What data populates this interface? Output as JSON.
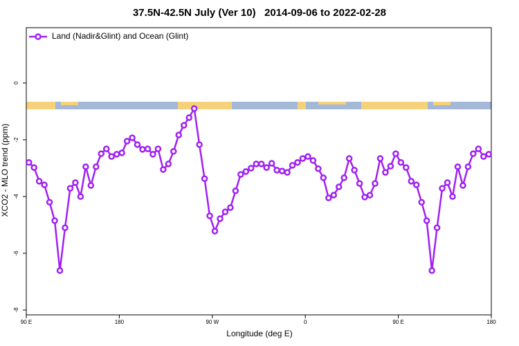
{
  "chart_data": {
    "type": "line",
    "title": "37.5N-42.5N July (Ver 10)   2014-09-06 to 2022-02-28",
    "x_label": "Longitude (deg E)",
    "y_label": "XCO2 - MLO trend (ppm)",
    "x": [
      92.5,
      97.5,
      102.5,
      107.5,
      112.5,
      117.5,
      122.5,
      127.5,
      132.5,
      137.5,
      142.5,
      147.5,
      152.5,
      157.5,
      162.5,
      167.5,
      172.5,
      177.5,
      182.5,
      187.5,
      192.5,
      197.5,
      202.5,
      207.5,
      212.5,
      217.5,
      222.5,
      227.5,
      232.5,
      237.5,
      242.5,
      247.5,
      252.5,
      257.5,
      262.5,
      267.5,
      272.5,
      277.5,
      282.5,
      287.5,
      292.5,
      297.5,
      302.5,
      307.5,
      312.5,
      317.5,
      322.5,
      327.5,
      332.5,
      337.5,
      342.5,
      347.5,
      352.5,
      357.5,
      362.5,
      367.5,
      372.5,
      377.5,
      382.5,
      387.5,
      392.5,
      397.5,
      402.5,
      407.5,
      412.5,
      417.5,
      422.5,
      427.5,
      432.5,
      437.5,
      442.5,
      447.5,
      452.5,
      457.5,
      462.5,
      467.5,
      472.5,
      477.5,
      482.5,
      487.5,
      492.5,
      497.5,
      502.5,
      507.5,
      512.5,
      517.5,
      522.5,
      527.5,
      532.5,
      537.5
    ],
    "series": [
      {
        "name": "Land (Nadir&Glint) and Ocean (Glint)",
        "color": "#a020f0",
        "values": [
          -2.8,
          -2.98,
          -3.46,
          -3.59,
          -4.2,
          -4.85,
          -6.61,
          -5.1,
          -3.71,
          -3.51,
          -4.0,
          -2.95,
          -3.61,
          -2.95,
          -2.49,
          -2.32,
          -2.59,
          -2.51,
          -2.46,
          -2.05,
          -1.93,
          -2.17,
          -2.34,
          -2.32,
          -2.51,
          -2.32,
          -3.05,
          -2.85,
          -2.41,
          -1.83,
          -1.49,
          -1.22,
          -0.9,
          -2.17,
          -3.37,
          -4.68,
          -5.22,
          -4.78,
          -4.54,
          -4.39,
          -3.8,
          -3.22,
          -3.12,
          -3.0,
          -2.85,
          -2.85,
          -2.98,
          -2.83,
          -3.07,
          -3.1,
          -3.15,
          -2.9,
          -2.8,
          -2.66,
          -2.59,
          -2.73,
          -3.02,
          -3.34,
          -4.05,
          -3.95,
          -3.66,
          -3.34,
          -2.66,
          -3.07,
          -3.54,
          -4.02,
          -3.95,
          -3.54,
          -2.66,
          -3.15,
          -2.93,
          -2.49,
          -2.8,
          -2.98,
          -3.46,
          -3.59,
          -4.2,
          -4.85,
          -6.61,
          -5.1,
          -3.71,
          -3.51,
          -4.0,
          -2.95,
          -3.61,
          -2.95,
          -2.49,
          -2.32,
          -2.59,
          -2.51
        ]
      }
    ],
    "xlim": [
      90,
      540
    ],
    "xticks": [
      {
        "value": 90,
        "label": "90 E"
      },
      {
        "value": 180,
        "label": "180"
      },
      {
        "value": 270,
        "label": "90 W"
      },
      {
        "value": 360,
        "label": "0"
      },
      {
        "value": 450,
        "label": "90 E"
      },
      {
        "value": 540,
        "label": "180"
      }
    ],
    "ylim": [
      -8.17,
      1.95
    ],
    "yticks": [
      0,
      -2,
      -4,
      -6,
      -8
    ],
    "legend": "top-left"
  }
}
